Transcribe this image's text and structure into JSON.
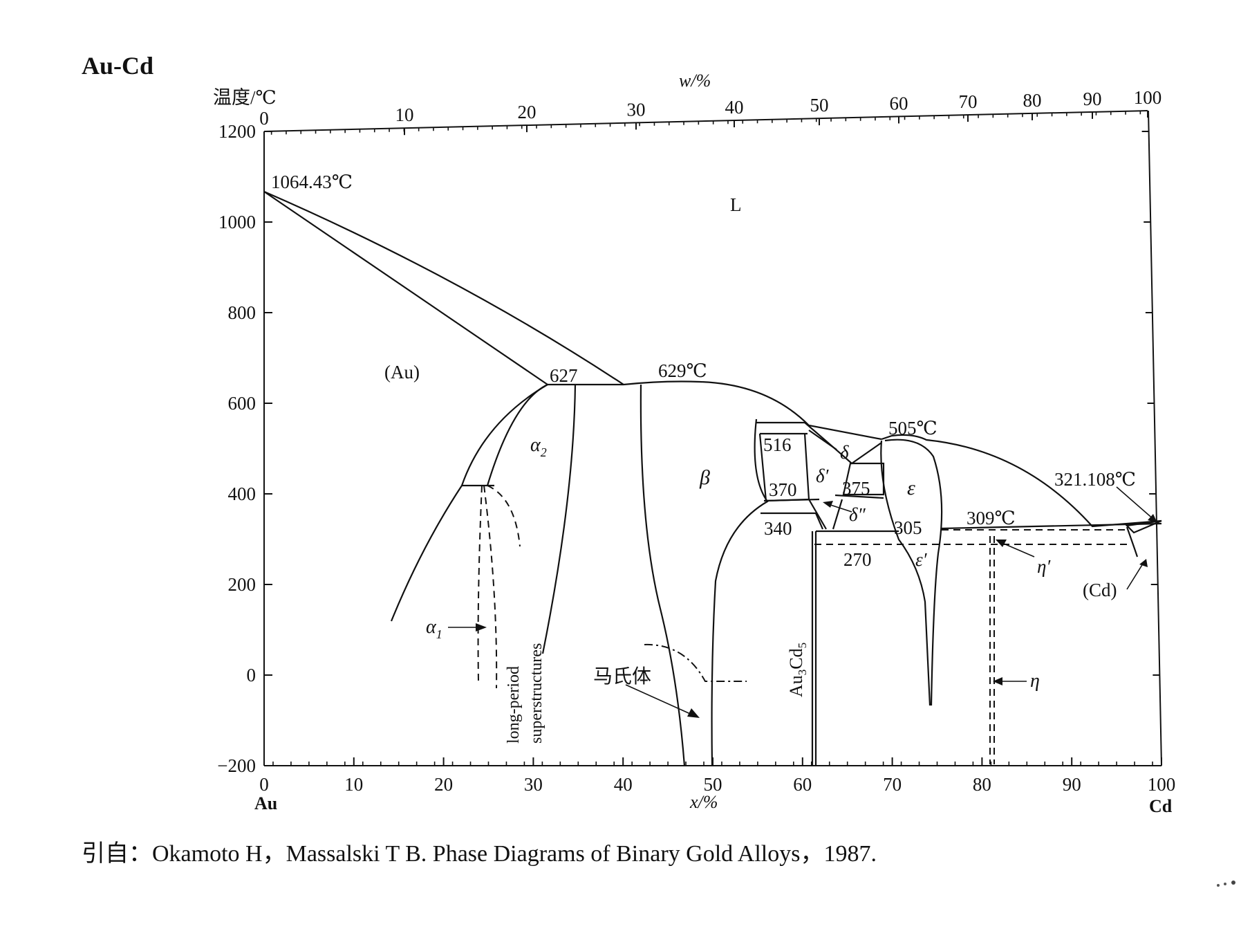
{
  "title": "Au-Cd",
  "y_axis_label": "温度/℃",
  "top_axis_label": "w/%",
  "bottom_axis_label": "x/%",
  "y_ticks": [
    "1200",
    "1000",
    "800",
    "600",
    "400",
    "200",
    "0",
    "−200"
  ],
  "top_ticks": [
    "0",
    "10",
    "20",
    "30",
    "40",
    "50",
    "60",
    "70",
    "80",
    "90",
    "100"
  ],
  "bottom_ticks": [
    "0",
    "10",
    "20",
    "30",
    "40",
    "50",
    "60",
    "70",
    "80",
    "90",
    "100"
  ],
  "left_element": "Au",
  "right_element": "Cd",
  "labels": {
    "au_melting": "1064.43℃",
    "liquid": "L",
    "au_phase": "(Au)",
    "t627": "627",
    "t629": "629℃",
    "alpha2": "α",
    "alpha2_sub": "2",
    "alpha1": "α",
    "alpha1_sub": "1",
    "long_period_1": "long-period",
    "long_period_2": "superstructures",
    "beta": "β",
    "martensite": "马氏体",
    "t516": "516",
    "t370": "370",
    "t340": "340",
    "delta": "δ",
    "delta_prime": "δ′",
    "delta_dprime": "δ″",
    "t375": "375",
    "t270": "270",
    "t505": "505℃",
    "epsilon": "ε",
    "t305": "305",
    "epsilon_prime": "ε′",
    "t309": "309℃",
    "t321": "321.108℃",
    "eta_prime": "η′",
    "eta": "η",
    "cd_phase": "(Cd)",
    "au3cd5_a": "Au",
    "au3cd5_b": "3",
    "au3cd5_c": "Cd",
    "au3cd5_d": "5"
  },
  "citation": "引自：Okamoto H，Massalski T B. Phase Diagrams of Binary Gold Alloys，1987."
}
